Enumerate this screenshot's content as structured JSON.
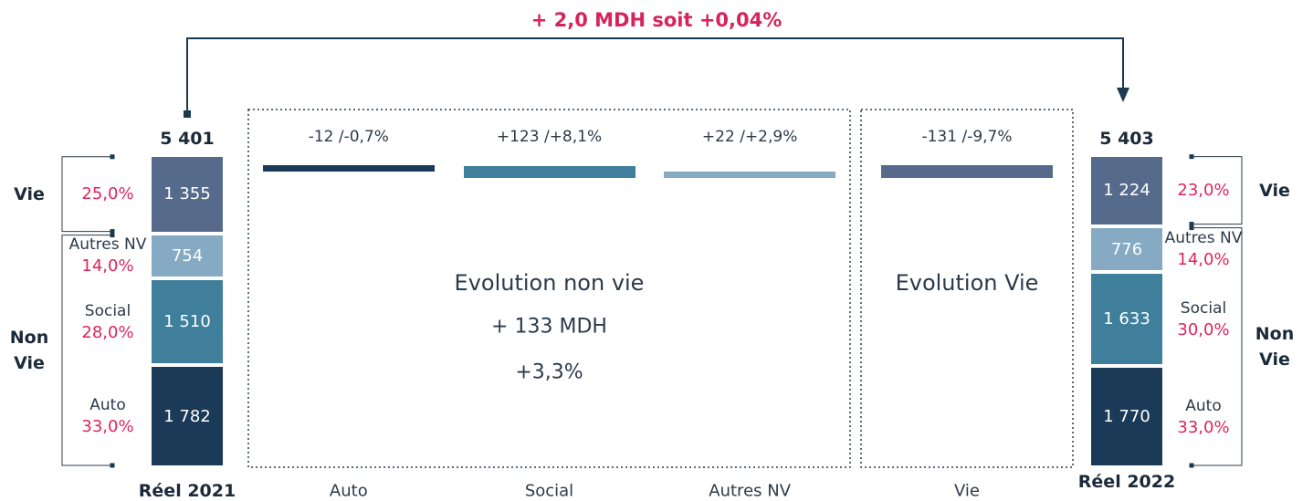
{
  "chart_data": {
    "type": "waterfall",
    "title": "+ 2,0 MDH soit +0,04%",
    "start": {
      "label": "Réel 2021",
      "total": 5401,
      "total_label": "5 401",
      "groups": [
        {
          "label": "Vie",
          "segments": [
            {
              "value": 1355,
              "value_label": "1 355",
              "share": 25.0,
              "share_label": "25,0%",
              "color": "#566b8c"
            }
          ]
        },
        {
          "label": "Non Vie",
          "segments": [
            {
              "name": "Autres NV",
              "value": 754,
              "share": 14.0,
              "share_label": "14,0%",
              "color": "#86aac4"
            },
            {
              "name": "Social",
              "value": 1510,
              "value_label": "1 510",
              "share": 28.0,
              "share_label": "28,0%",
              "color": "#3f7f9c"
            },
            {
              "name": "Auto",
              "value": 1782,
              "value_label": "1 782",
              "share": 33.0,
              "share_label": "33,0%",
              "color": "#1b3a57"
            }
          ]
        }
      ]
    },
    "end": {
      "label": "Réel 2022",
      "total": 5403,
      "total_label": "5 403",
      "groups": [
        {
          "label": "Vie",
          "segments": [
            {
              "value": 1224,
              "value_label": "1 224",
              "share": 23.0,
              "share_label": "23,0%",
              "color": "#566b8c"
            }
          ]
        },
        {
          "label": "Non Vie",
          "segments": [
            {
              "name": "Autres NV",
              "value": 776,
              "share": 14.0,
              "share_label": "14,0%",
              "color": "#86aac4"
            },
            {
              "name": "Social",
              "value": 1633,
              "value_label": "1 633",
              "share": 30.0,
              "share_label": "30,0%",
              "color": "#3f7f9c"
            },
            {
              "name": "Auto",
              "value": 1770,
              "value_label": "1 770",
              "share": 33.0,
              "share_label": "33,0%",
              "color": "#1b3a57"
            }
          ]
        }
      ]
    },
    "groups": [
      {
        "label": "Evolution non vie",
        "value": 133,
        "value_label": "+ 133 MDH",
        "pct": 3.3,
        "pct_label": "+3,3%",
        "steps": [
          {
            "category": "Auto",
            "value": -12,
            "pct": -0.7,
            "label": "-12 /-0,7%",
            "color": "#1b3a57"
          },
          {
            "category": "Social",
            "value": 123,
            "pct": 8.1,
            "label": "+123 /+8,1%",
            "color": "#3f7f9c"
          },
          {
            "category": "Autres NV",
            "value": 22,
            "pct": 2.9,
            "label": "+22 /+2,9%",
            "color": "#86aac4"
          }
        ]
      },
      {
        "label": "Evolution Vie",
        "steps": [
          {
            "category": "Vie",
            "value": -131,
            "pct": -9.7,
            "label": "-131 /-9,7%",
            "color": "#566b8c"
          }
        ]
      }
    ]
  }
}
